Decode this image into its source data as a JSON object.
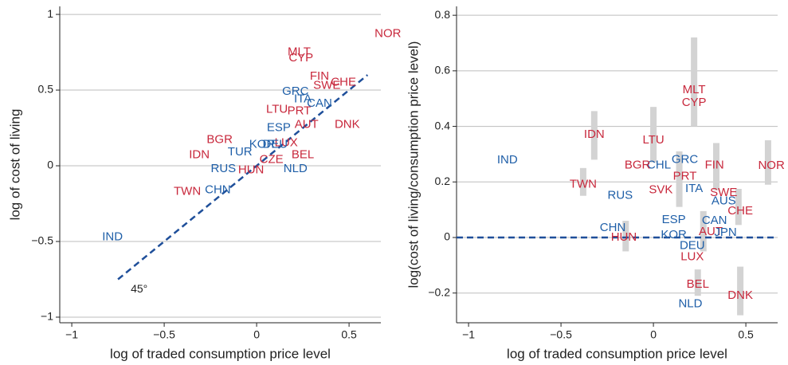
{
  "chart_data": [
    {
      "type": "scatter",
      "xlabel": "log of traded consumption price level",
      "ylabel": "log of cost of living",
      "xlim": [
        -1.065,
        0.672
      ],
      "ylim": [
        -1.037,
        1.053
      ],
      "xticks": [
        {
          "value": -1,
          "label": "−1"
        },
        {
          "value": -0.5,
          "label": "−0.5"
        },
        0,
        0.5
      ],
      "yticks": [
        {
          "value": -1,
          "label": "−1"
        },
        {
          "value": -0.5,
          "label": "−0.5"
        },
        0,
        0.5,
        1
      ],
      "grid": true,
      "diagonal": [
        -0.75,
        0.6
      ],
      "diagonal_label": "45°",
      "diagonal_color": "#1f4f9a",
      "labels": [
        "NOR",
        "MLT",
        "CYP",
        "FIN",
        "SWE",
        "CHE",
        "GRC",
        "ITA",
        "CAN",
        "DNK",
        "AUT",
        "LTU",
        "PRT",
        "ESP",
        "BEL",
        "BGR",
        "IDN",
        "TUR",
        "LUX",
        "DEU",
        "KOR",
        "RUS",
        "HUN",
        "NLD",
        "CZE",
        "TWN",
        "CHN",
        "IND"
      ],
      "x": [
        0.71,
        0.23,
        0.24,
        0.34,
        0.38,
        0.47,
        0.21,
        0.25,
        0.34,
        0.49,
        0.27,
        0.11,
        0.23,
        0.12,
        0.25,
        -0.2,
        -0.31,
        -0.09,
        0.16,
        0.1,
        0.03,
        -0.18,
        -0.03,
        0.21,
        0.08,
        -0.375,
        -0.21,
        -0.78
      ],
      "y": [
        0.87,
        0.75,
        0.71,
        0.59,
        0.53,
        0.55,
        0.49,
        0.44,
        0.41,
        0.27,
        0.27,
        0.37,
        0.36,
        0.25,
        0.07,
        0.17,
        0.07,
        0.09,
        0.15,
        0.14,
        0.14,
        -0.02,
        -0.03,
        -0.02,
        0.04,
        -0.17,
        -0.16,
        -0.47
      ],
      "colors": [
        "#c8283c",
        "#c8283c",
        "#c8283c",
        "#c8283c",
        "#c8283c",
        "#c8283c",
        "#1f5fa8",
        "#1f5fa8",
        "#1f5fa8",
        "#c8283c",
        "#c8283c",
        "#c8283c",
        "#c8283c",
        "#1f5fa8",
        "#c8283c",
        "#c8283c",
        "#c8283c",
        "#1f5fa8",
        "#c8283c",
        "#1f5fa8",
        "#1f5fa8",
        "#1f5fa8",
        "#c8283c",
        "#1f5fa8",
        "#c8283c",
        "#c8283c",
        "#1f5fa8",
        "#1f5fa8"
      ]
    },
    {
      "type": "scatter",
      "xlabel": "log of traded consumption price level",
      "ylabel": "log(cost of living/consumption price level)",
      "xlim": [
        -1.065,
        0.672
      ],
      "ylim": [
        -0.307,
        0.832
      ],
      "xticks": [
        {
          "value": -1,
          "label": "−1"
        },
        {
          "value": -0.5,
          "label": "−0.5"
        },
        0,
        0.5
      ],
      "yticks": [
        {
          "value": -0.2,
          "label": "−0.2"
        },
        0,
        0.2,
        0.4,
        0.6,
        0.8
      ],
      "grid": true,
      "refline": 0,
      "refline_color": "#1f4f9a",
      "interval_color": "#d3d3d3",
      "intervals": {
        "x": [
          -0.32,
          -0.38,
          0.0,
          0.22,
          0.34,
          0.62,
          0.46,
          0.47,
          0.24,
          0.14,
          -0.15,
          0.27
        ],
        "low": [
          0.28,
          0.15,
          0.27,
          0.4,
          0.17,
          0.19,
          0.045,
          -0.28,
          -0.21,
          0.11,
          -0.05,
          -0.05
        ],
        "high": [
          0.455,
          0.25,
          0.47,
          0.72,
          0.34,
          0.35,
          0.175,
          -0.105,
          -0.115,
          0.31,
          0.06,
          0.095
        ]
      },
      "labels": [
        "NOR",
        "IND",
        "IDN",
        "LTU",
        "MLT",
        "CYP",
        "FIN",
        "GRC",
        "CHL",
        "BGR",
        "TWN",
        "RUS",
        "PRT",
        "ITA",
        "SVK",
        "SWE",
        "AUS",
        "CHE",
        "CAN",
        "ESP",
        "AUT",
        "JPN",
        "CHN",
        "KOR",
        "HUN",
        "DEU",
        "LUX",
        "BEL",
        "DNK",
        "NLD"
      ],
      "x": [
        0.638,
        -0.79,
        -0.32,
        0.0,
        0.22,
        0.22,
        0.33,
        0.17,
        0.03,
        -0.086,
        -0.38,
        -0.18,
        0.17,
        0.22,
        0.04,
        0.38,
        0.38,
        0.47,
        0.33,
        0.11,
        0.31,
        0.39,
        -0.22,
        0.11,
        -0.16,
        0.21,
        0.21,
        0.24,
        0.47,
        0.2
      ],
      "y": [
        0.258,
        0.278,
        0.37,
        0.35,
        0.53,
        0.485,
        0.26,
        0.28,
        0.26,
        0.26,
        0.19,
        0.15,
        0.22,
        0.175,
        0.17,
        0.16,
        0.13,
        0.095,
        0.06,
        0.063,
        0.02,
        0.017,
        0.034,
        0.009,
        0.0,
        -0.03,
        -0.07,
        -0.17,
        -0.21,
        -0.24
      ],
      "colors": [
        "#c8283c",
        "#1f5fa8",
        "#c8283c",
        "#c8283c",
        "#c8283c",
        "#c8283c",
        "#c8283c",
        "#1f5fa8",
        "#1f5fa8",
        "#c8283c",
        "#c8283c",
        "#1f5fa8",
        "#c8283c",
        "#1f5fa8",
        "#c8283c",
        "#c8283c",
        "#1f5fa8",
        "#c8283c",
        "#1f5fa8",
        "#1f5fa8",
        "#c8283c",
        "#1f5fa8",
        "#1f5fa8",
        "#1f5fa8",
        "#c8283c",
        "#1f5fa8",
        "#c8283c",
        "#c8283c",
        "#c8283c",
        "#1f5fa8"
      ]
    }
  ]
}
